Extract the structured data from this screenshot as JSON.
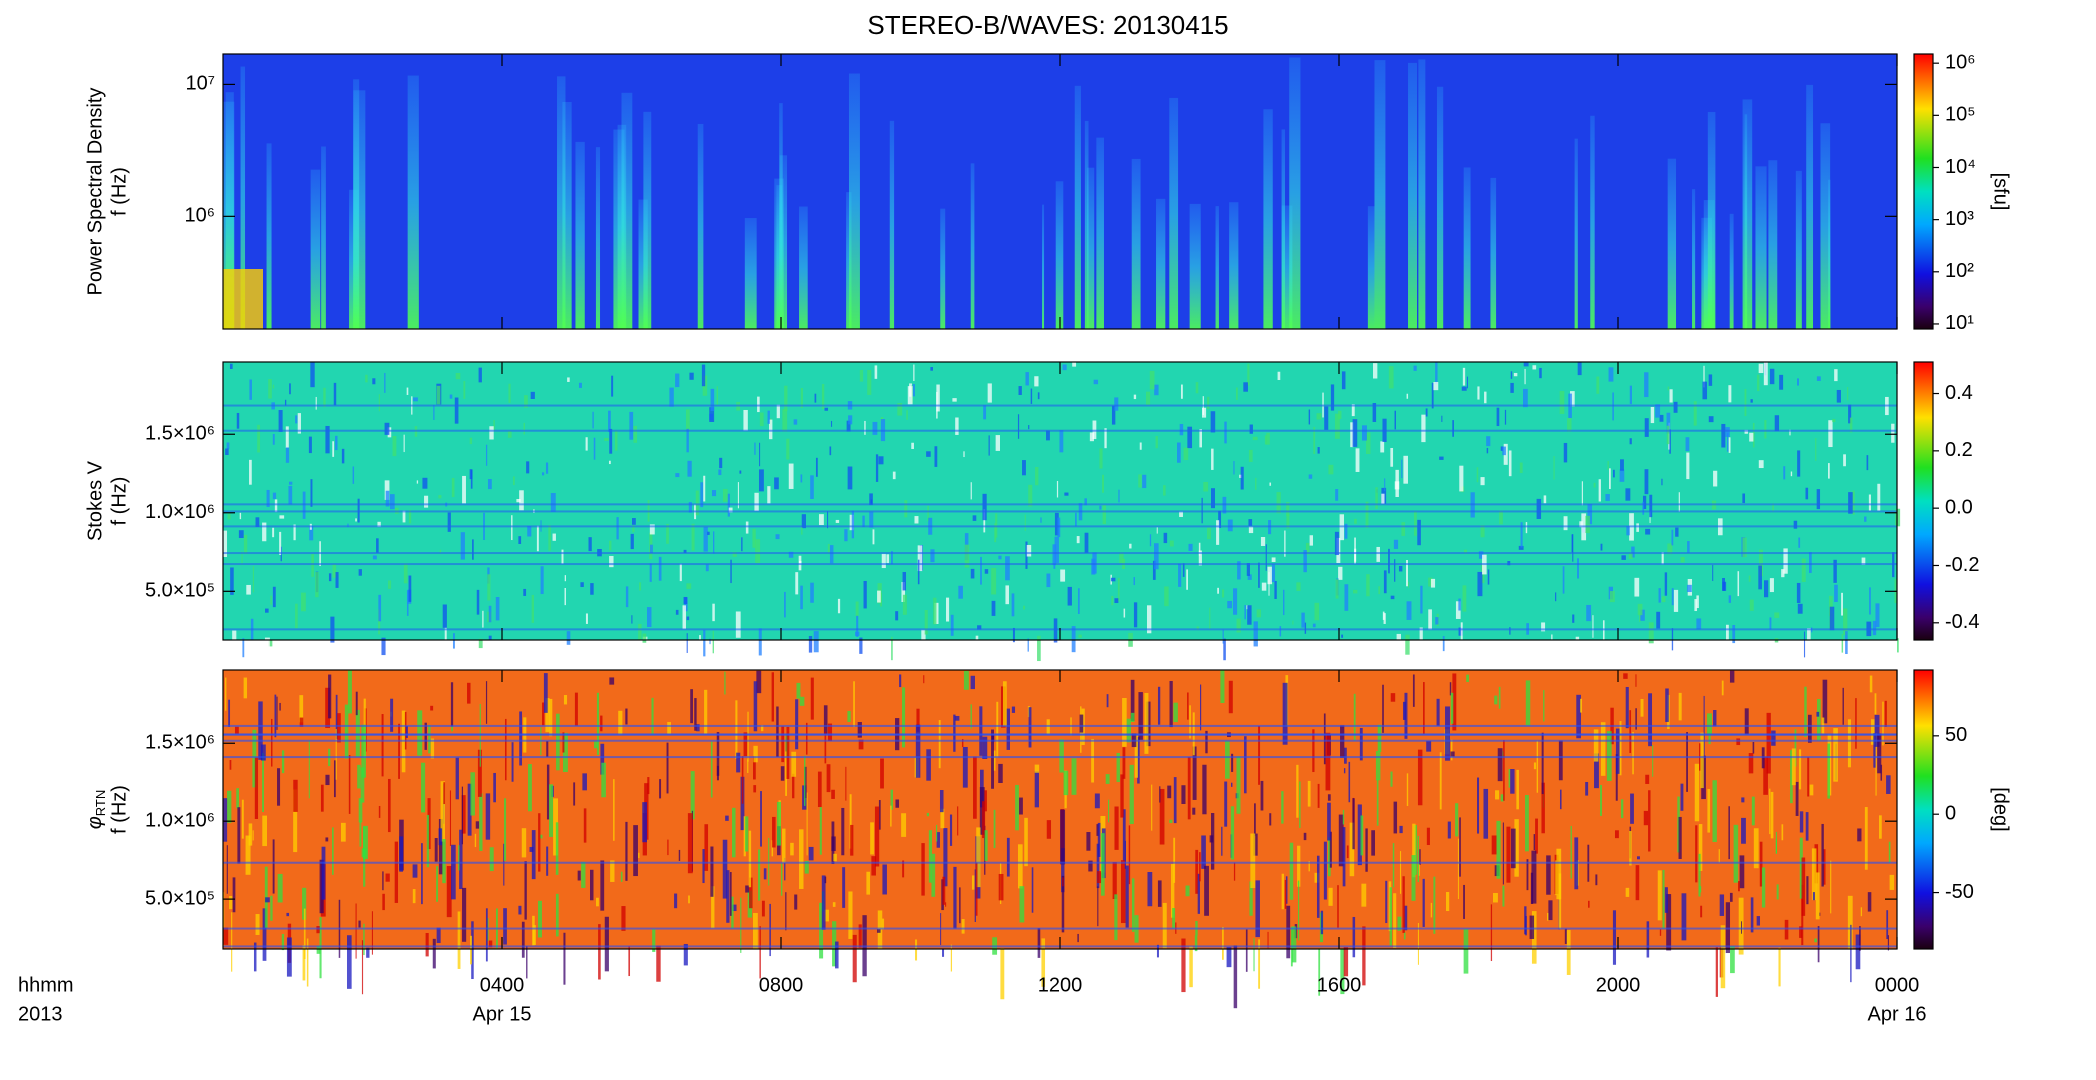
{
  "title": "STEREO-B/WAVES: 20130415",
  "x_axis": {
    "label_lines": [
      "hhmm",
      "2013"
    ],
    "xlim": [
      0,
      24
    ],
    "xticks": [
      {
        "value": 4,
        "label": "0400"
      },
      {
        "value": 8,
        "label": "0800"
      },
      {
        "value": 12,
        "label": "1200"
      },
      {
        "value": 16,
        "label": "1600"
      },
      {
        "value": 20,
        "label": "2000"
      },
      {
        "value": 24,
        "label": "0000"
      }
    ],
    "date_labels": [
      {
        "value": 4,
        "label": "Apr 15"
      },
      {
        "value": 24,
        "label": "Apr 16"
      }
    ]
  },
  "chart_data": [
    {
      "type": "heatmap",
      "ylabel": [
        "Power Spectral Density",
        "f (Hz)"
      ],
      "log_y": true,
      "ylim": [
        140000,
        17000000
      ],
      "yticks": [
        {
          "value": 1000000,
          "label": "10⁶"
        },
        {
          "value": 10000000,
          "label": "10⁷"
        }
      ],
      "colorbar": {
        "label": "[sfu]",
        "log": true,
        "clim": [
          8,
          1500000
        ],
        "ticks": [
          {
            "value": 10,
            "label": "10¹"
          },
          {
            "value": 100,
            "label": "10²"
          },
          {
            "value": 1000,
            "label": "10³"
          },
          {
            "value": 10000,
            "label": "10⁴"
          },
          {
            "value": 100000,
            "label": "10⁵"
          },
          {
            "value": 1000000,
            "label": "10⁶"
          }
        ]
      }
    },
    {
      "type": "heatmap",
      "ylabel": [
        "Stokes V",
        "f (Hz)"
      ],
      "log_y": false,
      "ylim": [
        190000,
        1960000
      ],
      "yticks": [
        {
          "value": 500000,
          "label": "5.0×10⁵"
        },
        {
          "value": 1000000,
          "label": "1.0×10⁶"
        },
        {
          "value": 1500000,
          "label": "1.5×10⁶"
        }
      ],
      "colorbar": {
        "log": false,
        "clim": [
          -0.46,
          0.51
        ],
        "ticks": [
          0.4,
          0.2,
          {
            "value": 0,
            "label": "0.0"
          },
          -0.2,
          -0.4
        ]
      }
    },
    {
      "type": "heatmap",
      "ylabel_symbol": "φ",
      "ylabel_subscript": "RTN",
      "ylabel": [
        "f (Hz)"
      ],
      "log_y": false,
      "ylim": [
        180000,
        1970000
      ],
      "yticks": [
        {
          "value": 500000,
          "label": "5.0×10⁵"
        },
        {
          "value": 1000000,
          "label": "1.0×10⁶"
        },
        {
          "value": 1500000,
          "label": "1.5×10⁶"
        }
      ],
      "colorbar": {
        "label": "[deg]",
        "log": false,
        "clim": [
          -86,
          92
        ],
        "ticks": [
          50,
          0,
          -50
        ]
      }
    }
  ]
}
